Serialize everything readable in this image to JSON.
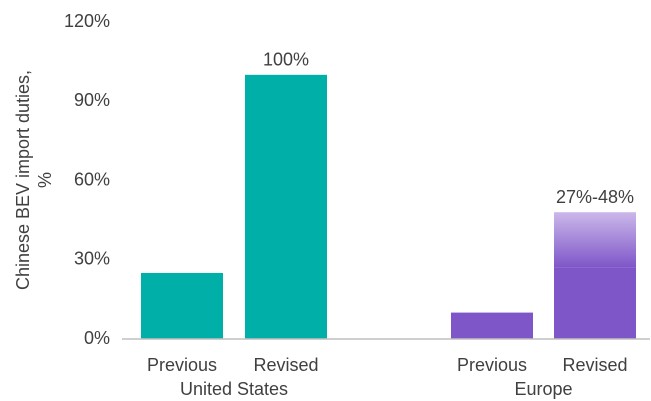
{
  "chart_data": {
    "type": "bar",
    "y_label": [
      "Chinese BEV import duties,",
      "%"
    ],
    "categories": [
      "Previous",
      "Revised",
      "Previous",
      "Revised"
    ],
    "groups": [
      "United States",
      "Europe"
    ],
    "values": [
      25,
      100,
      10,
      27
    ],
    "upper_values": [
      null,
      null,
      null,
      48
    ],
    "value_labels": [
      null,
      "100%",
      null,
      "27%-48%"
    ],
    "colors": [
      "#00b0a8",
      "#00b0a8",
      "#7e56c8",
      "#7e56c8"
    ],
    "range_color": "#cbb8ea",
    "ylim": [
      0,
      120
    ],
    "yticks": [
      {
        "value": 0,
        "label": "0%"
      },
      {
        "value": 30,
        "label": "30%"
      },
      {
        "value": 60,
        "label": "60%"
      },
      {
        "value": 90,
        "label": "90%"
      },
      {
        "value": 120,
        "label": "120%"
      }
    ],
    "grid": false
  }
}
